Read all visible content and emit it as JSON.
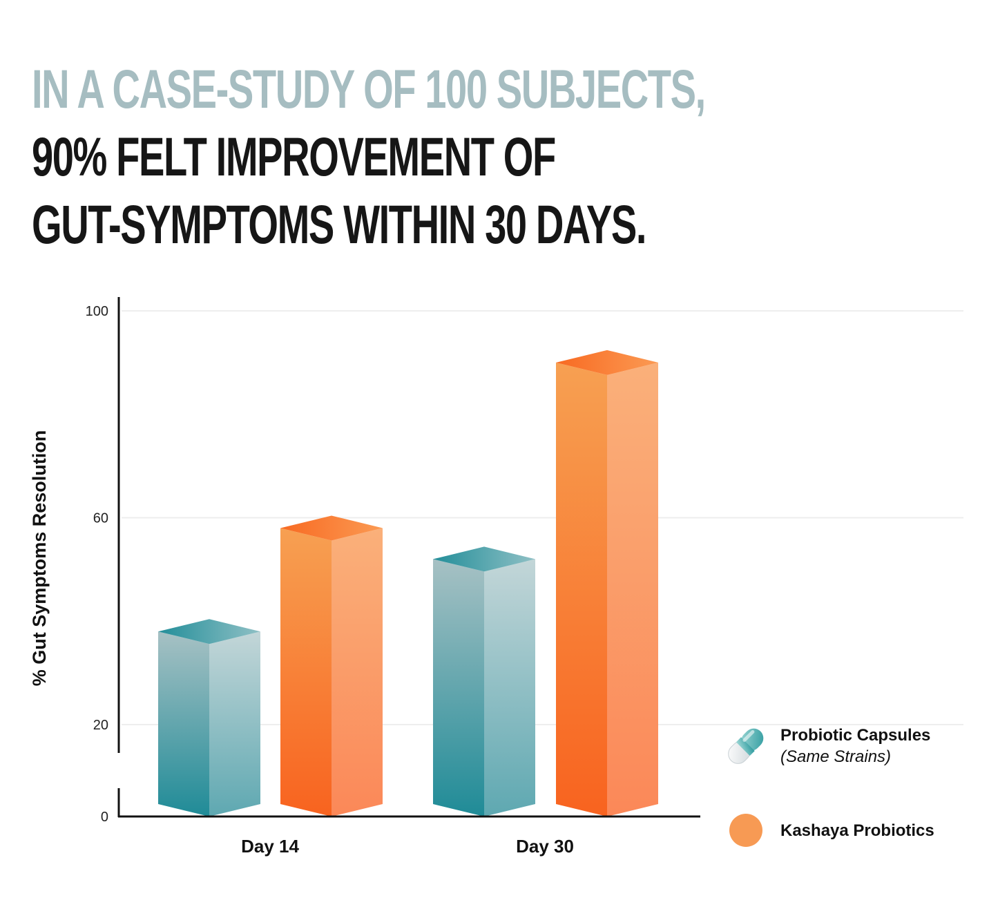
{
  "headline": {
    "line1": "In a case-study of 100 subjects,",
    "line2": "90% felt improvement of",
    "line3": "gut-symptoms within 30 days."
  },
  "chart_data": {
    "type": "bar",
    "ylabel": "% Gut Symptoms Resolution",
    "categories": [
      "Day 14",
      "Day 30"
    ],
    "yticks": [
      0,
      20,
      60,
      100
    ],
    "ylim": [
      0,
      100
    ],
    "axis_break": true,
    "grid": "horizontal",
    "legend_position": "bottom-right",
    "series": [
      {
        "name": "Probiotic Capsules",
        "note": "(Same Strains)",
        "values": [
          38,
          52
        ],
        "color": "#2a8f99"
      },
      {
        "name": "Kashaya Probiotics",
        "values": [
          58,
          90
        ],
        "color": "#f8834a"
      }
    ]
  }
}
